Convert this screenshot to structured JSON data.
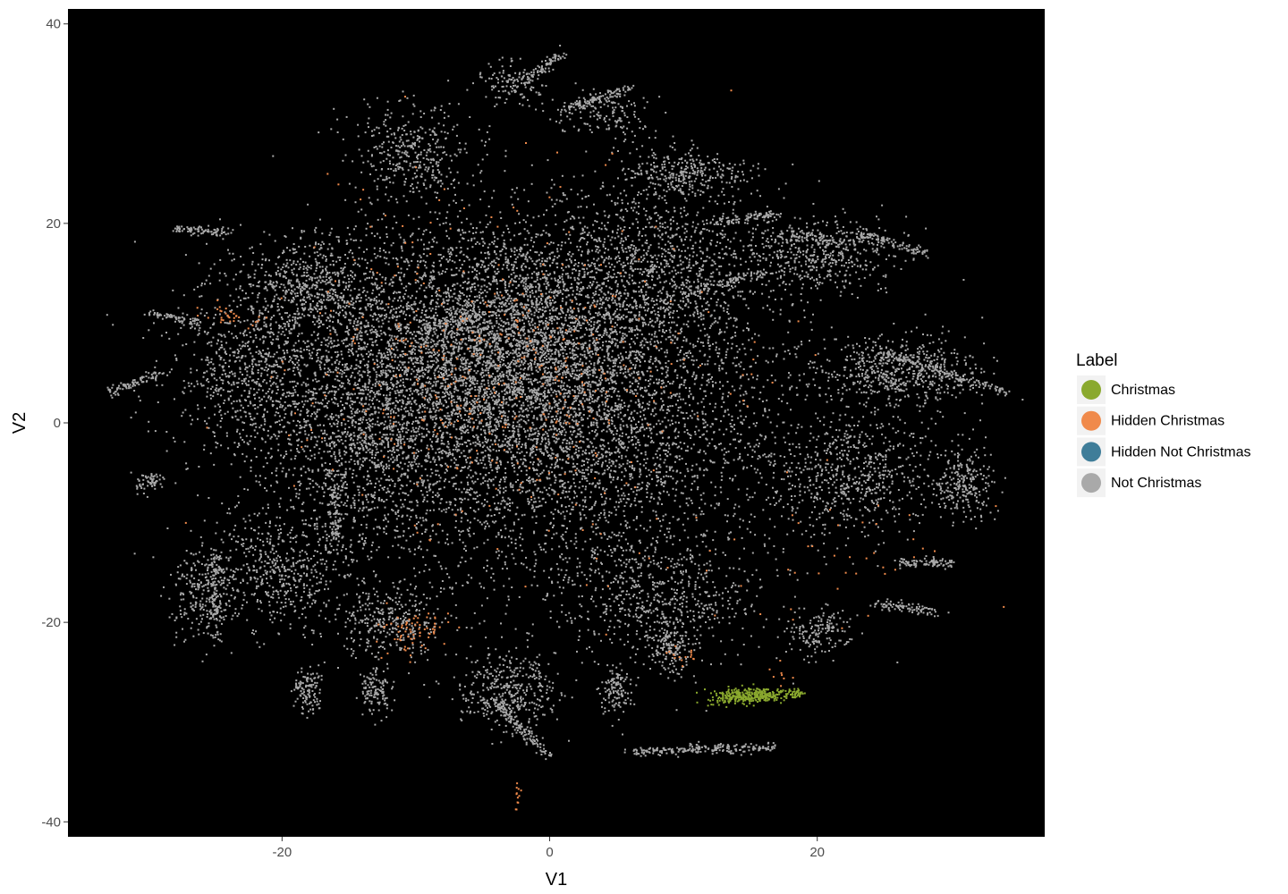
{
  "chart_data": {
    "type": "scatter",
    "title": "",
    "xlabel": "V1",
    "ylabel": "V2",
    "xlim": [
      -36,
      37
    ],
    "ylim": [
      -41.5,
      41.5
    ],
    "x_ticks": [
      -20,
      0,
      20
    ],
    "y_ticks": [
      -40,
      -20,
      0,
      20,
      40
    ],
    "x_tick_labels": [
      "-20",
      "0",
      "20"
    ],
    "y_tick_labels": [
      "-40",
      "-20",
      "0",
      "20",
      "40"
    ],
    "grid": false,
    "panel_background": "#000000",
    "legend": {
      "title": "Label",
      "placement": "right",
      "entries": [
        {
          "label": "Christmas",
          "color": "#8aa92e"
        },
        {
          "label": "Hidden Christmas",
          "color": "#f08a4b"
        },
        {
          "label": "Hidden Not Christmas",
          "color": "#3f7d99"
        },
        {
          "label": "Not Christmas",
          "color": "#a9a9a9"
        }
      ]
    },
    "series": [
      {
        "name": "Not Christmas",
        "color": "#a9a9a9",
        "clusters": [
          {
            "center": [
              -4,
              8
            ],
            "spread": [
              12,
              10
            ],
            "count": 4500
          },
          {
            "center": [
              0,
              0
            ],
            "spread": [
              16,
              14
            ],
            "count": 5000
          },
          {
            "center": [
              -14,
              -2
            ],
            "spread": [
              5,
              10
            ],
            "count": 900
          },
          {
            "center": [
              8,
              16
            ],
            "spread": [
              7,
              7
            ],
            "count": 900
          },
          {
            "center": [
              20,
              17
            ],
            "spread": [
              5,
              3
            ],
            "count": 500
          },
          {
            "center": [
              26,
              5
            ],
            "spread": [
              5,
              3
            ],
            "count": 600
          },
          {
            "center": [
              -22,
              5
            ],
            "spread": [
              5,
              8
            ],
            "count": 800
          },
          {
            "center": [
              -20,
              -15
            ],
            "spread": [
              4,
              5
            ],
            "count": 500
          },
          {
            "center": [
              -3,
              -27
            ],
            "spread": [
              3,
              3
            ],
            "count": 400
          },
          {
            "center": [
              8,
              -18
            ],
            "spread": [
              6,
              5
            ],
            "count": 600
          },
          {
            "center": [
              23,
              -5
            ],
            "spread": [
              5,
              5
            ],
            "count": 600
          },
          {
            "center": [
              -10,
              27
            ],
            "spread": [
              4,
              4
            ],
            "count": 400
          },
          {
            "center": [
              -26,
              -17
            ],
            "spread": [
              2,
              4
            ],
            "count": 250
          },
          {
            "center": [
              31,
              -6
            ],
            "spread": [
              2,
              3
            ],
            "count": 250
          },
          {
            "center": [
              4,
              31
            ],
            "spread": [
              3,
              2
            ],
            "count": 150
          },
          {
            "center": [
              -3,
              34
            ],
            "spread": [
              2,
              2
            ],
            "count": 120
          },
          {
            "center": [
              10,
              25
            ],
            "spread": [
              4,
              2
            ],
            "count": 300
          },
          {
            "center": [
              -18,
              14
            ],
            "spread": [
              4,
              4
            ],
            "count": 500
          },
          {
            "center": [
              -12,
              -20
            ],
            "spread": [
              3,
              3
            ],
            "count": 300
          },
          {
            "center": [
              -18,
              -27
            ],
            "spread": [
              1,
              2
            ],
            "count": 120
          },
          {
            "center": [
              -13,
              -27
            ],
            "spread": [
              1,
              2
            ],
            "count": 120
          },
          {
            "center": [
              5,
              -27
            ],
            "spread": [
              1,
              2
            ],
            "count": 120
          },
          {
            "center": [
              9,
              -23
            ],
            "spread": [
              1,
              2
            ],
            "count": 120
          },
          {
            "center": [
              20,
              -21
            ],
            "spread": [
              2,
              2
            ],
            "count": 160
          },
          {
            "center": [
              -30,
              -6
            ],
            "spread": [
              1,
              1
            ],
            "count": 60
          }
        ],
        "strands": [
          {
            "from": [
              -28,
              19.5
            ],
            "to": [
              -24,
              19
            ],
            "count": 90
          },
          {
            "from": [
              -33,
              3
            ],
            "to": [
              -29,
              5
            ],
            "count": 90
          },
          {
            "from": [
              -30,
              11
            ],
            "to": [
              -26,
              10
            ],
            "count": 70
          },
          {
            "from": [
              23,
              19
            ],
            "to": [
              28,
              17
            ],
            "count": 110
          },
          {
            "from": [
              25,
              7
            ],
            "to": [
              34,
              3
            ],
            "count": 150
          },
          {
            "from": [
              18,
              19
            ],
            "to": [
              22,
              18
            ],
            "count": 60
          },
          {
            "from": [
              26,
              -14
            ],
            "to": [
              30,
              -14
            ],
            "count": 90
          },
          {
            "from": [
              24,
              -18
            ],
            "to": [
              29,
              -19
            ],
            "count": 90
          },
          {
            "from": [
              6,
              -33
            ],
            "to": [
              17,
              -32.5
            ],
            "count": 220
          },
          {
            "from": [
              1,
              31.5
            ],
            "to": [
              6,
              33.5
            ],
            "count": 110
          },
          {
            "from": 0,
            "to": 0,
            "count": 0
          },
          {
            "from": [
              -2,
              34
            ],
            "to": [
              1,
              37
            ],
            "count": 80
          },
          {
            "from": [
              -25,
              -13
            ],
            "to": [
              -25,
              -22
            ],
            "count": 110
          },
          {
            "from": [
              -16,
              -6
            ],
            "to": [
              -16,
              -12
            ],
            "count": 90
          },
          {
            "from": [
              -4,
              -28
            ],
            "to": [
              0,
              -33.5
            ],
            "count": 120
          },
          {
            "from": [
              10,
              13
            ],
            "to": [
              16,
              15
            ],
            "count": 90
          },
          {
            "from": [
              12,
              20
            ],
            "to": [
              17,
              21
            ],
            "count": 90
          },
          {
            "from": [
              -10,
              9
            ],
            "to": [
              -5,
              11
            ],
            "count": 80
          }
        ]
      },
      {
        "name": "Hidden Christmas",
        "color": "#f08a4b",
        "clusters": [
          {
            "center": [
              -3,
              5
            ],
            "spread": [
              14,
              14
            ],
            "count": 420
          },
          {
            "center": [
              -10,
              -21
            ],
            "spread": [
              2,
              2
            ],
            "count": 70
          },
          {
            "center": [
              -24,
              10.5
            ],
            "spread": [
              2,
              1
            ],
            "count": 30
          },
          {
            "center": [
              -2.5,
              -37
            ],
            "spread": [
              0.3,
              1
            ],
            "count": 12
          },
          {
            "center": [
              20,
              -14
            ],
            "spread": [
              10,
              5
            ],
            "count": 40
          },
          {
            "center": [
              17,
              -25
            ],
            "spread": [
              1,
              1
            ],
            "count": 8
          },
          {
            "center": [
              10,
              -23
            ],
            "spread": [
              1,
              1
            ],
            "count": 15
          }
        ],
        "strands": []
      },
      {
        "name": "Christmas",
        "color": "#8aa92e",
        "clusters": [
          {
            "center": [
              15,
              -27.3
            ],
            "spread": [
              2.2,
              0.6
            ],
            "count": 260
          }
        ],
        "strands": [
          {
            "from": [
              12,
              -28
            ],
            "to": [
              19,
              -27
            ],
            "count": 120
          }
        ]
      },
      {
        "name": "Hidden Not Christmas",
        "color": "#3f7d99",
        "clusters": [],
        "strands": []
      }
    ]
  }
}
